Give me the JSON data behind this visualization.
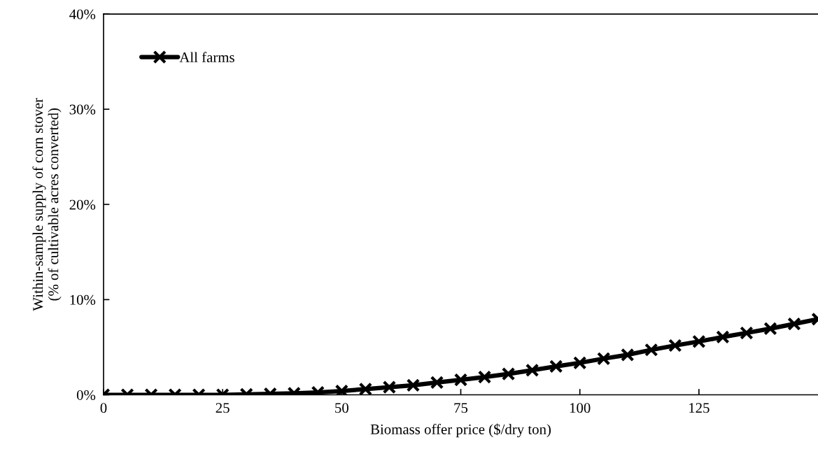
{
  "chart_data": {
    "type": "line",
    "xlabel": "Biomass offer price ($/dry ton)",
    "ylabel": "Within-sample supply of corn stover\n(% of cultivable acres converted)",
    "x": [
      0,
      5,
      10,
      15,
      20,
      25,
      30,
      35,
      40,
      45,
      50,
      55,
      60,
      65,
      70,
      75,
      80,
      85,
      90,
      95,
      100,
      105,
      110,
      115,
      120,
      125,
      130,
      135,
      140,
      145,
      150
    ],
    "series": [
      {
        "name": "All farms",
        "color": "#000000",
        "values": [
          0,
          0,
          0,
          0,
          0,
          0,
          0.05,
          0.1,
          0.15,
          0.25,
          0.4,
          0.6,
          0.8,
          1.0,
          1.3,
          1.57,
          1.87,
          2.2,
          2.58,
          2.98,
          3.36,
          3.8,
          4.2,
          4.72,
          5.18,
          5.6,
          6.07,
          6.5,
          6.95,
          7.45,
          7.95
        ]
      }
    ],
    "xlim": [
      0,
      150
    ],
    "xticks": [
      0,
      25,
      50,
      75,
      100,
      125
    ],
    "ylim": [
      0,
      40
    ],
    "yticks": [
      {
        "value": 0,
        "label": "0%"
      },
      {
        "value": 10,
        "label": "10%"
      },
      {
        "value": 20,
        "label": "20%"
      },
      {
        "value": 30,
        "label": "30%"
      },
      {
        "value": 40,
        "label": "40%"
      }
    ],
    "marker": "cross",
    "line_style": "solid",
    "legend": "top left",
    "grid": false
  }
}
